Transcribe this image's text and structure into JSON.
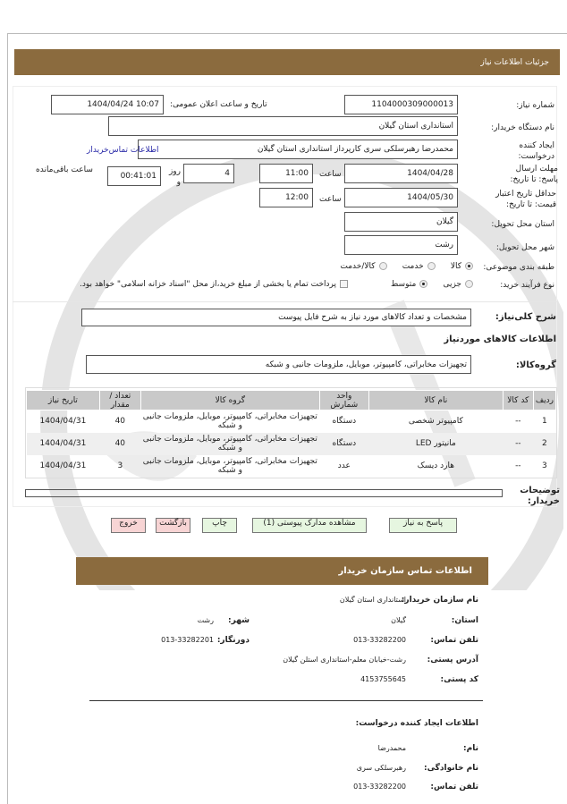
{
  "header": {
    "title": "جزئیات اطلاعات نیاز"
  },
  "form": {
    "need_number_label": "شماره نیاز:",
    "need_number": "1104000309000013",
    "announce_label": "تاریخ و ساعت اعلان عمومی:",
    "announce_value": "1404/04/24 10:07",
    "buyer_org_label": "نام دستگاه خریدار:",
    "buyer_org": "استانداری استان گیلان",
    "creator_label": "ایجاد کننده درخواست:",
    "creator": "محمدرضا رهبرسلکی سری کارپرداز استانداری استان گیلان",
    "contact_link": "اطلاعات تماس‌خریدار",
    "deadline_label": "مهلت ارسال پاسخ: تا تاریخ:",
    "deadline_date": "1404/04/28",
    "time_label": "ساعت",
    "deadline_time": "11:00",
    "days": "4",
    "days_label": "روز و",
    "remaining": "00:41:01",
    "remaining_label": "ساعت باقی‌مانده",
    "validity_label": "حداقل تاریخ اعتبار قیمت: تا تاریخ:",
    "validity_date": "1404/05/30",
    "validity_time": "12:00",
    "province_label": "استان محل تحویل:",
    "province": "گیلان",
    "city_label": "شهر محل تحویل:",
    "city": "رشت",
    "category_label": "طبقه بندی موضوعی:",
    "category_options": [
      "کالا",
      "خدمت",
      "کالا/خدمت"
    ],
    "category_selected": "کالا",
    "process_label": "نوع فرآیند خرید:",
    "process_options": [
      "جزیی",
      "متوسط"
    ],
    "process_selected": "متوسط",
    "treasury_text": "پرداخت تمام یا بخشی از مبلغ خرید،از محل \"اسناد خزانه اسلامی\" خواهد بود.",
    "description_label": "شرح کلی‌نیاز:",
    "description": "مشخصات و تعداد کالاهای مورد نیاز به شرح فایل پیوست",
    "goods_title": "اطلاعات کالاهای موردنیاز",
    "goods_group_label": "گروه‌کالا:",
    "goods_group": "تجهیزات مخابراتی، کامپیوتر، موبایل، ملزومات جانبی و شبکه"
  },
  "table": {
    "headers": [
      "ردیف",
      "کد کالا",
      "نام کالا",
      "واحد شمارش",
      "گروه کالا",
      "تعداد / مقدار",
      "تاریخ نیاز"
    ],
    "rows": [
      [
        "1",
        "--",
        "کامپیوتر شخصی",
        "دستگاه",
        "تجهیزات مخابراتی، کامپیوتر، موبایل، ملزومات جانبی و شبکه",
        "40",
        "1404/04/31"
      ],
      [
        "2",
        "--",
        "مانیتور LED",
        "دستگاه",
        "تجهیزات مخابراتی، کامپیوتر، موبایل، ملزومات جانبی و شبکه",
        "40",
        "1404/04/31"
      ],
      [
        "3",
        "--",
        "هارد دیسک",
        "عدد",
        "تجهیزات مخابراتی، کامپیوتر، موبایل، ملزومات جانبی و شبکه",
        "3",
        "1404/04/31"
      ]
    ]
  },
  "notes_label": "توضیحات خریدار:",
  "buttons": {
    "reply": "پاسخ به نیاز",
    "attachments": "مشاهده مدارک پیوستی (1)",
    "print": "چاپ",
    "back": "بازگشت",
    "exit": "خروج"
  },
  "contact": {
    "title": "اطلاعات تماس سازمان خریدار",
    "org_label": "نام سازمان خریدار:",
    "org": "استانداری استان گیلان",
    "province_label": "استان:",
    "province": "گیلان",
    "city_label": "شهر:",
    "city": "رشت",
    "phone_label": "تلفن تماس:",
    "phone": "013-33282200",
    "fax_label": "دورنگار:",
    "fax": "013-33282201",
    "address_label": "آدرس پستی:",
    "address": "رشت-خیابان معلم-استانداری استلن گیلان",
    "postal_label": "کد پستی:",
    "postal": "4153755645",
    "creator_title": "اطلاعات ایجاد کننده درخواست:",
    "name_label": "نام:",
    "name": "محمدرضا",
    "family_label": "نام خانوادگی:",
    "family": "رهبرسلکی سری",
    "creator_phone_label": "تلفن تماس:",
    "creator_phone": "013-33282200"
  },
  "colors": {
    "brand": "#8b6b3e",
    "button_green": "#e6f6e0",
    "button_pink": "#f7d4d4"
  }
}
